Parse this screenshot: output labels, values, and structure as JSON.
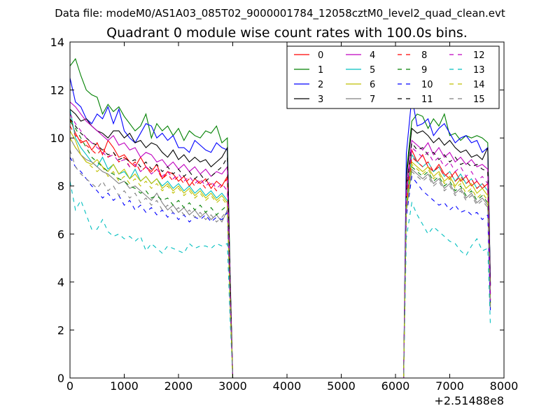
{
  "header": "Data file: modeM0/AS1A03_085T02_9000001784_12058cztM0_level2_quad_clean.evt",
  "chart_data": {
    "type": "line",
    "title": "Quadrant 0 module wise count rates with 100.0s bins.",
    "xlabel": "",
    "ylabel": "",
    "x_offset_label": "+2.51488e8",
    "xlim": [
      0,
      8000
    ],
    "ylim": [
      0,
      14
    ],
    "xticks": [
      0,
      1000,
      2000,
      3000,
      4000,
      5000,
      6000,
      7000,
      8000
    ],
    "yticks": [
      0,
      2,
      4,
      6,
      8,
      10,
      12,
      14
    ],
    "grid": false,
    "legend_position": "top-right",
    "legend_columns": 4,
    "segments": [
      {
        "start": 0,
        "end": 2900,
        "step": 100
      },
      {
        "start": 6300,
        "end": 7700,
        "step": 100
      }
    ],
    "series": [
      {
        "name": "0",
        "color": "#ff0000",
        "dash": "solid",
        "s1": [
          10.8,
          10.2,
          9.8,
          9.9,
          9.5,
          9.8,
          9.3,
          9.9,
          9.6,
          9.2,
          9.3,
          9.0,
          8.8,
          9.2,
          8.8,
          8.6,
          8.9,
          8.3,
          8.6,
          8.5,
          8.2,
          8.4,
          8.0,
          8.3,
          8.1,
          8.3,
          7.9,
          8.2,
          8.0,
          8.4
        ],
        "s2": [
          9.5,
          9.0,
          9.3,
          8.8,
          8.6,
          8.9,
          8.5,
          8.3,
          8.6,
          8.2,
          8.4,
          8.0,
          8.2,
          7.9,
          8.1
        ]
      },
      {
        "name": "1",
        "color": "#008000",
        "dash": "solid",
        "s1": [
          13.0,
          13.3,
          12.6,
          12.0,
          11.8,
          11.7,
          11.0,
          11.4,
          11.1,
          11.3,
          10.9,
          10.6,
          10.3,
          10.5,
          11.0,
          10.0,
          10.6,
          10.3,
          10.5,
          10.1,
          10.4,
          9.9,
          10.3,
          10.1,
          10.0,
          10.3,
          10.2,
          10.5,
          9.8,
          10.0
        ],
        "s2": [
          10.7,
          11.0,
          10.9,
          10.4,
          10.8,
          10.5,
          11.0,
          10.1,
          10.2,
          9.9,
          10.1,
          10.0,
          10.1,
          10.0,
          9.8
        ]
      },
      {
        "name": "2",
        "color": "#0000ff",
        "dash": "solid",
        "s1": [
          12.5,
          11.5,
          11.3,
          10.8,
          10.6,
          11.0,
          10.8,
          11.3,
          10.6,
          11.2,
          10.3,
          10.0,
          9.8,
          10.2,
          10.6,
          10.5,
          10.0,
          10.2,
          9.9,
          10.1,
          9.6,
          9.6,
          9.4,
          9.9,
          9.7,
          9.5,
          9.4,
          9.8,
          9.6,
          9.5
        ],
        "s2": [
          11.7,
          10.5,
          10.6,
          10.8,
          10.1,
          10.4,
          10.6,
          10.2,
          9.8,
          10.0,
          10.1,
          9.8,
          9.9,
          9.4,
          9.6
        ]
      },
      {
        "name": "3",
        "color": "#000000",
        "dash": "solid",
        "s1": [
          11.2,
          11.0,
          10.7,
          10.8,
          10.5,
          10.3,
          10.2,
          10.0,
          10.3,
          10.3,
          10.0,
          10.2,
          9.8,
          9.9,
          9.6,
          9.8,
          9.7,
          9.4,
          9.2,
          9.5,
          9.1,
          9.3,
          9.0,
          9.2,
          9.0,
          9.1,
          8.8,
          9.0,
          9.2,
          9.6
        ],
        "s2": [
          10.4,
          10.2,
          10.3,
          10.1,
          9.8,
          10.0,
          9.7,
          9.9,
          9.6,
          9.4,
          9.5,
          9.2,
          9.3,
          9.1,
          9.6
        ]
      },
      {
        "name": "4",
        "color": "#bf00bf",
        "dash": "solid",
        "s1": [
          11.5,
          11.3,
          11.0,
          10.7,
          10.5,
          10.3,
          10.1,
          9.9,
          10.1,
          9.7,
          9.8,
          9.5,
          9.6,
          9.2,
          9.4,
          9.3,
          9.0,
          9.1,
          8.8,
          9.0,
          8.7,
          8.9,
          8.6,
          8.8,
          8.5,
          8.7,
          8.4,
          8.6,
          8.5,
          8.8
        ],
        "s2": [
          9.9,
          9.7,
          9.5,
          9.8,
          9.3,
          9.6,
          9.2,
          9.4,
          9.0,
          9.2,
          8.9,
          9.1,
          8.8,
          8.9,
          8.7
        ]
      },
      {
        "name": "5",
        "color": "#00bfbf",
        "dash": "solid",
        "s1": [
          11.2,
          10.0,
          9.6,
          9.3,
          9.0,
          8.8,
          9.2,
          8.7,
          8.9,
          8.5,
          8.6,
          8.3,
          8.7,
          8.2,
          8.4,
          8.1,
          8.3,
          8.0,
          8.2,
          7.9,
          8.1,
          7.8,
          8.0,
          7.7,
          7.9,
          7.6,
          7.8,
          7.5,
          7.7,
          7.4
        ],
        "s2": [
          9.3,
          9.0,
          8.8,
          9.0,
          8.6,
          8.8,
          8.4,
          8.6,
          8.2,
          8.5,
          8.1,
          8.3,
          7.9,
          8.1,
          7.8
        ]
      },
      {
        "name": "6",
        "color": "#bfbf00",
        "dash": "solid",
        "s1": [
          10.3,
          9.9,
          9.3,
          9.0,
          8.9,
          9.1,
          8.8,
          8.6,
          8.9,
          8.5,
          8.7,
          8.3,
          8.5,
          8.2,
          8.4,
          8.1,
          8.3,
          7.9,
          8.1,
          7.8,
          8.0,
          7.7,
          7.9,
          7.6,
          7.8,
          7.5,
          7.7,
          7.4,
          7.6,
          7.3
        ],
        "s2": [
          9.0,
          8.8,
          8.6,
          8.8,
          8.4,
          8.6,
          8.2,
          8.4,
          8.0,
          8.3,
          7.9,
          8.1,
          7.7,
          7.9,
          7.6
        ]
      },
      {
        "name": "7",
        "color": "#808080",
        "dash": "solid",
        "s1": [
          10.0,
          9.6,
          9.3,
          9.1,
          9.0,
          8.8,
          8.6,
          8.5,
          8.3,
          8.1,
          8.2,
          7.9,
          8.0,
          7.8,
          7.6,
          7.4,
          7.7,
          7.3,
          7.0,
          7.2,
          6.9,
          7.1,
          6.8,
          7.0,
          6.7,
          6.9,
          6.6,
          6.8,
          6.5,
          7.0
        ],
        "s2": [
          8.7,
          8.5,
          8.3,
          8.5,
          8.1,
          8.3,
          7.9,
          8.1,
          7.7,
          7.9,
          7.5,
          7.7,
          7.3,
          7.5,
          7.2
        ]
      },
      {
        "name": "8",
        "color": "#ff0000",
        "dash": "dashed",
        "s1": [
          10.5,
          10.1,
          9.9,
          9.7,
          9.5,
          9.3,
          9.6,
          9.2,
          9.4,
          9.0,
          9.2,
          8.8,
          9.0,
          8.6,
          8.8,
          8.5,
          8.7,
          8.3,
          8.5,
          8.2,
          8.4,
          8.1,
          8.3,
          8.0,
          8.2,
          7.9,
          8.1,
          7.8,
          8.0,
          8.3
        ],
        "s2": [
          9.2,
          9.0,
          8.8,
          9.0,
          8.6,
          8.8,
          8.4,
          8.6,
          8.2,
          8.4,
          8.1,
          8.3,
          7.9,
          8.1,
          7.8
        ]
      },
      {
        "name": "9",
        "color": "#008000",
        "dash": "dashed",
        "s1": [
          10.7,
          10.4,
          10.0,
          9.6,
          9.2,
          9.0,
          8.8,
          8.6,
          8.5,
          8.3,
          8.2,
          8.0,
          7.9,
          7.7,
          7.8,
          7.5,
          7.6,
          7.4,
          7.5,
          7.2,
          7.4,
          7.1,
          7.3,
          7.0,
          7.2,
          6.9,
          7.1,
          6.8,
          7.0,
          7.2
        ],
        "s2": [
          8.8,
          8.6,
          8.4,
          8.6,
          8.2,
          8.4,
          8.0,
          8.2,
          7.8,
          8.0,
          7.6,
          7.8,
          7.4,
          7.6,
          7.3
        ]
      },
      {
        "name": "10",
        "color": "#0000ff",
        "dash": "dashed",
        "s1": [
          9.2,
          8.8,
          8.6,
          8.3,
          8.0,
          7.8,
          7.5,
          7.7,
          7.4,
          7.6,
          7.2,
          7.4,
          7.0,
          7.2,
          6.9,
          7.1,
          6.8,
          7.0,
          6.7,
          6.9,
          6.6,
          6.8,
          6.5,
          6.7,
          6.6,
          6.8,
          6.5,
          6.7,
          6.6,
          6.9
        ],
        "s2": [
          8.4,
          8.1,
          7.8,
          7.6,
          7.4,
          7.2,
          7.3,
          7.0,
          7.2,
          6.9,
          7.0,
          6.8,
          6.9,
          6.6,
          6.8
        ]
      },
      {
        "name": "11",
        "color": "#000000",
        "dash": "dashed",
        "s1": [
          10.8,
          10.5,
          10.2,
          10.0,
          9.8,
          9.7,
          9.5,
          9.3,
          9.4,
          9.1,
          9.2,
          9.0,
          9.1,
          8.8,
          9.0,
          8.7,
          8.9,
          8.6,
          8.8,
          8.5,
          8.7,
          8.4,
          8.6,
          8.3,
          8.5,
          8.2,
          8.4,
          8.6,
          8.8,
          9.2
        ],
        "s2": [
          9.8,
          9.5,
          9.6,
          9.3,
          9.4,
          9.1,
          9.3,
          9.0,
          9.2,
          8.9,
          9.0,
          8.8,
          8.9,
          8.7,
          8.6
        ]
      },
      {
        "name": "12",
        "color": "#bf00bf",
        "dash": "dashed",
        "s1": [
          11.0,
          10.6,
          10.3,
          10.0,
          9.8,
          9.6,
          9.4,
          9.2,
          9.3,
          9.0,
          9.1,
          8.8,
          8.9,
          8.6,
          8.8,
          8.5,
          8.7,
          8.4,
          8.6,
          8.3,
          8.5,
          8.2,
          8.4,
          8.1,
          8.3,
          8.0,
          8.2,
          7.9,
          8.1,
          7.8
        ],
        "s2": [
          9.6,
          9.4,
          9.2,
          9.4,
          9.0,
          9.2,
          8.8,
          9.0,
          8.6,
          8.8,
          8.4,
          8.6,
          8.2,
          8.4,
          8.1
        ]
      },
      {
        "name": "13",
        "color": "#00bfbf",
        "dash": "dashed",
        "s1": [
          8.2,
          7.0,
          7.4,
          6.8,
          6.2,
          6.2,
          6.6,
          6.1,
          5.9,
          6.0,
          5.8,
          5.9,
          5.7,
          5.9,
          5.3,
          5.6,
          5.4,
          5.2,
          5.5,
          5.4,
          5.3,
          5.2,
          5.6,
          5.4,
          5.5,
          5.5,
          5.4,
          5.6,
          5.5,
          5.6
        ],
        "s2": [
          7.3,
          6.8,
          6.4,
          6.0,
          6.3,
          6.1,
          5.9,
          5.7,
          5.6,
          5.3,
          5.1,
          5.5,
          5.8,
          5.3,
          5.4
        ]
      },
      {
        "name": "14",
        "color": "#bfbf00",
        "dash": "dashed",
        "s1": [
          10.0,
          9.6,
          9.3,
          9.0,
          8.8,
          8.6,
          8.8,
          8.4,
          8.6,
          8.2,
          8.4,
          8.1,
          8.3,
          8.0,
          8.2,
          7.9,
          8.1,
          7.8,
          8.0,
          7.7,
          7.9,
          7.6,
          7.8,
          7.5,
          7.7,
          7.4,
          7.6,
          7.3,
          7.5,
          7.2
        ],
        "s2": [
          8.9,
          8.7,
          8.5,
          8.7,
          8.3,
          8.5,
          8.1,
          8.3,
          7.9,
          8.1,
          7.7,
          7.9,
          7.5,
          7.7,
          7.4
        ]
      },
      {
        "name": "15",
        "color": "#808080",
        "dash": "dashed",
        "s1": [
          9.5,
          8.8,
          8.5,
          8.3,
          8.1,
          7.9,
          8.2,
          7.8,
          8.0,
          7.6,
          7.8,
          7.5,
          7.7,
          7.3,
          7.5,
          7.2,
          7.4,
          7.0,
          7.2,
          6.9,
          7.1,
          6.8,
          7.0,
          6.7,
          6.9,
          6.6,
          6.8,
          6.5,
          6.7,
          7.0
        ],
        "s2": [
          8.6,
          8.4,
          8.2,
          8.4,
          8.0,
          8.2,
          7.8,
          8.0,
          7.6,
          7.8,
          7.4,
          7.6,
          7.2,
          7.4,
          7.1
        ]
      }
    ]
  }
}
